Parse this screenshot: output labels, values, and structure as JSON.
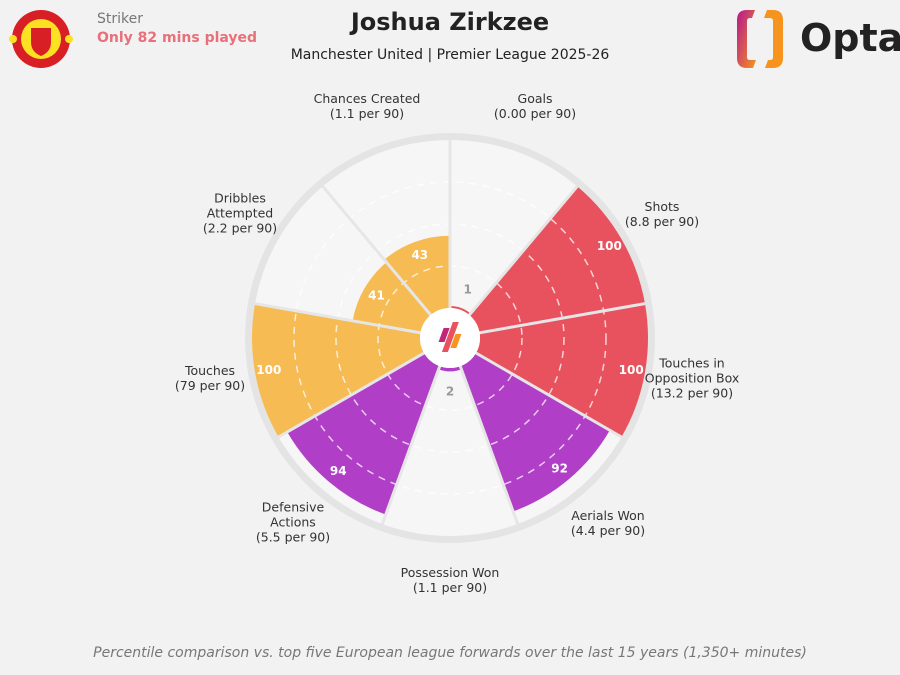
{
  "header": {
    "position": "Striker",
    "note": "Only 82 mins played",
    "title": "Joshua Zirkzee",
    "subtitle": "Manchester United | Premier League 2025-26",
    "club_crest": "MANCHESTER UNITED",
    "brand": "Opta"
  },
  "footer": "Percentile comparison vs. top five European league forwards over the last 15 years (1,350+ minutes)",
  "colors": {
    "attacking": "#e8525e",
    "defending": "#b03ec6",
    "possession": "#f6bb52",
    "note": "#e8707a"
  },
  "chart_data": {
    "type": "pie",
    "subtype": "pizza/radar percentile chart",
    "range": [
      0,
      100
    ],
    "gridlines": [
      25,
      50,
      75
    ],
    "categories": [
      {
        "name": "Goals",
        "per90": "(0.00 per 90)",
        "percentile": 1,
        "group": "attacking"
      },
      {
        "name": "Shots",
        "per90": "(8.8 per 90)",
        "percentile": 100,
        "group": "attacking"
      },
      {
        "name": "Touches in Opposition Box",
        "per90": "(13.2 per 90)",
        "percentile": 100,
        "group": "attacking"
      },
      {
        "name": "Aerials Won",
        "per90": "(4.4 per 90)",
        "percentile": 92,
        "group": "defending"
      },
      {
        "name": "Possession Won",
        "per90": "(1.1 per 90)",
        "percentile": 2,
        "group": "defending"
      },
      {
        "name": "Defensive Actions",
        "per90": "(5.5 per 90)",
        "percentile": 94,
        "group": "defending"
      },
      {
        "name": "Touches",
        "per90": "(79 per 90)",
        "percentile": 100,
        "group": "possession"
      },
      {
        "name": "Dribbles Attempted",
        "per90": "(2.2 per 90)",
        "percentile": 41,
        "group": "possession"
      },
      {
        "name": "Chances Created",
        "per90": "(1.1 per 90)",
        "percentile": 43,
        "group": "possession"
      }
    ]
  }
}
